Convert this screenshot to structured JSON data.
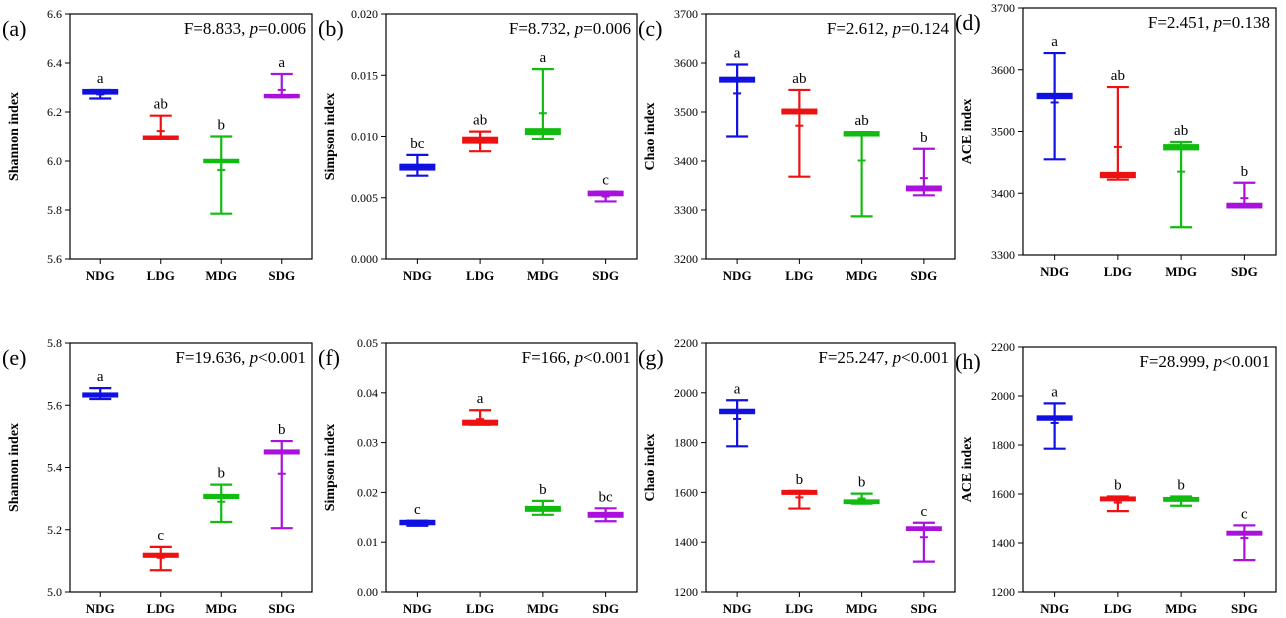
{
  "chart_data": [
    {
      "type": "box",
      "panel_label": "(a)",
      "annotation": {
        "prefix": "F=8.833, ",
        "pvar": "p",
        "relation": "=",
        "pval": "0.006"
      },
      "ylabel": "Shannon index",
      "ylim": [
        5.6,
        6.6
      ],
      "yticks": [
        "5.6",
        "5.8",
        "6.0",
        "6.2",
        "6.4",
        "6.6"
      ],
      "categories": [
        "NDG",
        "LDG",
        "MDG",
        "SDG"
      ],
      "colors": [
        "#1010e0",
        "#ee1111",
        "#11bb11",
        "#aa11dd"
      ],
      "series": [
        {
          "name": "NDG",
          "median": 6.28,
          "q1": 6.275,
          "q3": 6.29,
          "min": 6.255,
          "max": 6.29,
          "mean": 6.272,
          "letter": "a"
        },
        {
          "name": "LDG",
          "median": 6.095,
          "q1": 6.09,
          "q3": 6.1,
          "min": 6.09,
          "max": 6.185,
          "mean": 6.122,
          "letter": "ab"
        },
        {
          "name": "MDG",
          "median": 6.0,
          "q1": 5.995,
          "q3": 6.005,
          "min": 5.785,
          "max": 6.1,
          "mean": 5.963,
          "letter": "b"
        },
        {
          "name": "SDG",
          "median": 6.265,
          "q1": 6.26,
          "q3": 6.27,
          "min": 6.26,
          "max": 6.355,
          "mean": 6.29,
          "letter": "a"
        }
      ]
    },
    {
      "type": "box",
      "panel_label": "(b)",
      "annotation": {
        "prefix": "F=8.732, ",
        "pvar": "p",
        "relation": "=",
        "pval": "0.006"
      },
      "ylabel": "Simpson index",
      "ylim": [
        0.0,
        0.02
      ],
      "yticks": [
        "0.000",
        "0.005",
        "0.010",
        "0.015",
        "0.020"
      ],
      "categories": [
        "NDG",
        "LDG",
        "MDG",
        "SDG"
      ],
      "colors": [
        "#1010e0",
        "#ee1111",
        "#11bb11",
        "#aa11dd"
      ],
      "series": [
        {
          "name": "NDG",
          "median": 0.0075,
          "q1": 0.0073,
          "q3": 0.0077,
          "min": 0.0068,
          "max": 0.0085,
          "mean": 0.0076,
          "letter": "bc"
        },
        {
          "name": "LDG",
          "median": 0.0097,
          "q1": 0.0095,
          "q3": 0.0099,
          "min": 0.0088,
          "max": 0.0104,
          "mean": 0.0096,
          "letter": "ab"
        },
        {
          "name": "MDG",
          "median": 0.0104,
          "q1": 0.0102,
          "q3": 0.0106,
          "min": 0.0098,
          "max": 0.0155,
          "mean": 0.0119,
          "letter": "a"
        },
        {
          "name": "SDG",
          "median": 0.0054,
          "q1": 0.0052,
          "q3": 0.0055,
          "min": 0.0047,
          "max": 0.0055,
          "mean": 0.0051,
          "letter": "c"
        }
      ]
    },
    {
      "type": "box",
      "panel_label": "(c)",
      "annotation": {
        "prefix": "F=2.612, ",
        "pvar": "p",
        "relation": "=",
        "pval": "0.124"
      },
      "ylabel": "Chao index",
      "ylim": [
        3200,
        3700
      ],
      "yticks": [
        "3200",
        "3300",
        "3400",
        "3500",
        "3600",
        "3700"
      ],
      "categories": [
        "NDG",
        "LDG",
        "MDG",
        "SDG"
      ],
      "colors": [
        "#1010e0",
        "#ee1111",
        "#11bb11",
        "#aa11dd"
      ],
      "series": [
        {
          "name": "NDG",
          "median": 3567,
          "q1": 3562,
          "q3": 3570,
          "min": 3450,
          "max": 3597,
          "mean": 3538,
          "letter": "a"
        },
        {
          "name": "LDG",
          "median": 3502,
          "q1": 3497,
          "q3": 3505,
          "min": 3368,
          "max": 3545,
          "mean": 3472,
          "letter": "ab"
        },
        {
          "name": "MDG",
          "median": 3456,
          "q1": 3452,
          "q3": 3459,
          "min": 3287,
          "max": 3459,
          "mean": 3401,
          "letter": "ab"
        },
        {
          "name": "SDG",
          "median": 3345,
          "q1": 3340,
          "q3": 3348,
          "min": 3330,
          "max": 3425,
          "mean": 3365,
          "letter": "b"
        }
      ]
    },
    {
      "type": "box",
      "panel_label": "(d)",
      "annotation": {
        "prefix": "F=2.451, ",
        "pvar": "p",
        "relation": "=",
        "pval": "0.138"
      },
      "ylabel": "ACE index",
      "ylim": [
        3300,
        3700
      ],
      "yticks": [
        "3300",
        "3400",
        "3500",
        "3600",
        "3700"
      ],
      "categories": [
        "NDG",
        "LDG",
        "MDG",
        "SDG"
      ],
      "colors": [
        "#1010e0",
        "#ee1111",
        "#11bb11",
        "#aa11dd"
      ],
      "series": [
        {
          "name": "NDG",
          "median": 3558,
          "q1": 3554,
          "q3": 3561,
          "min": 3455,
          "max": 3627,
          "mean": 3547,
          "letter": "a"
        },
        {
          "name": "LDG",
          "median": 3430,
          "q1": 3426,
          "q3": 3433,
          "min": 3422,
          "max": 3572,
          "mean": 3475,
          "letter": "ab"
        },
        {
          "name": "MDG",
          "median": 3475,
          "q1": 3471,
          "q3": 3478,
          "min": 3345,
          "max": 3483,
          "mean": 3435,
          "letter": "ab"
        },
        {
          "name": "SDG",
          "median": 3380,
          "q1": 3377,
          "q3": 3383,
          "min": 3377,
          "max": 3417,
          "mean": 3392,
          "letter": "b"
        }
      ]
    },
    {
      "type": "box",
      "panel_label": "(e)",
      "annotation": {
        "prefix": "F=19.636, ",
        "pvar": "p",
        "relation": "<",
        "pval": "0.001"
      },
      "ylabel": "Shannon index",
      "ylim": [
        5.0,
        5.8
      ],
      "yticks": [
        "5.0",
        "5.2",
        "5.4",
        "5.6",
        "5.8"
      ],
      "categories": [
        "NDG",
        "LDG",
        "MDG",
        "SDG"
      ],
      "colors": [
        "#1010e0",
        "#ee1111",
        "#11bb11",
        "#aa11dd"
      ],
      "series": [
        {
          "name": "NDG",
          "median": 5.633,
          "q1": 5.628,
          "q3": 5.638,
          "min": 5.62,
          "max": 5.655,
          "mean": 5.635,
          "letter": "a"
        },
        {
          "name": "LDG",
          "median": 5.118,
          "q1": 5.113,
          "q3": 5.123,
          "min": 5.07,
          "max": 5.145,
          "mean": 5.11,
          "letter": "c"
        },
        {
          "name": "MDG",
          "median": 5.307,
          "q1": 5.302,
          "q3": 5.312,
          "min": 5.225,
          "max": 5.345,
          "mean": 5.29,
          "letter": "b"
        },
        {
          "name": "SDG",
          "median": 5.45,
          "q1": 5.445,
          "q3": 5.455,
          "min": 5.205,
          "max": 5.485,
          "mean": 5.38,
          "letter": "b"
        }
      ]
    },
    {
      "type": "box",
      "panel_label": "(f)",
      "annotation": {
        "prefix": "F=166, ",
        "pvar": "p",
        "relation": "<",
        "pval": "0.001"
      },
      "ylabel": "Simpson index",
      "ylim": [
        0.0,
        0.05
      ],
      "yticks": [
        "0.00",
        "0.01",
        "0.02",
        "0.03",
        "0.04",
        "0.05"
      ],
      "categories": [
        "NDG",
        "LDG",
        "MDG",
        "SDG"
      ],
      "colors": [
        "#1010e0",
        "#ee1111",
        "#11bb11",
        "#aa11dd"
      ],
      "series": [
        {
          "name": "NDG",
          "median": 0.014,
          "q1": 0.0136,
          "q3": 0.0143,
          "min": 0.0133,
          "max": 0.0143,
          "mean": 0.0138,
          "letter": "c"
        },
        {
          "name": "LDG",
          "median": 0.034,
          "q1": 0.0336,
          "q3": 0.0344,
          "min": 0.0336,
          "max": 0.0365,
          "mean": 0.0347,
          "letter": "a"
        },
        {
          "name": "MDG",
          "median": 0.0167,
          "q1": 0.0163,
          "q3": 0.0171,
          "min": 0.0155,
          "max": 0.0183,
          "mean": 0.0168,
          "letter": "b"
        },
        {
          "name": "SDG",
          "median": 0.0155,
          "q1": 0.0151,
          "q3": 0.0159,
          "min": 0.0142,
          "max": 0.0168,
          "mean": 0.0155,
          "letter": "bc"
        }
      ]
    },
    {
      "type": "box",
      "panel_label": "(g)",
      "annotation": {
        "prefix": "F=25.247, ",
        "pvar": "p",
        "relation": "<",
        "pval": "0.001"
      },
      "ylabel": "Chao index",
      "ylim": [
        1200,
        2200
      ],
      "yticks": [
        "1200",
        "1400",
        "1600",
        "1800",
        "2000",
        "2200"
      ],
      "categories": [
        "NDG",
        "LDG",
        "MDG",
        "SDG"
      ],
      "colors": [
        "#1010e0",
        "#ee1111",
        "#11bb11",
        "#aa11dd"
      ],
      "series": [
        {
          "name": "NDG",
          "median": 1925,
          "q1": 1918,
          "q3": 1932,
          "min": 1785,
          "max": 1970,
          "mean": 1895,
          "letter": "a"
        },
        {
          "name": "LDG",
          "median": 1600,
          "q1": 1594,
          "q3": 1606,
          "min": 1535,
          "max": 1606,
          "mean": 1580,
          "letter": "b"
        },
        {
          "name": "MDG",
          "median": 1563,
          "q1": 1557,
          "q3": 1568,
          "min": 1555,
          "max": 1595,
          "mean": 1575,
          "letter": "b"
        },
        {
          "name": "SDG",
          "median": 1455,
          "q1": 1449,
          "q3": 1460,
          "min": 1322,
          "max": 1478,
          "mean": 1420,
          "letter": "c"
        }
      ]
    },
    {
      "type": "box",
      "panel_label": "(h)",
      "annotation": {
        "prefix": "F=28.999, ",
        "pvar": "p",
        "relation": "<",
        "pval": "0.001"
      },
      "ylabel": "ACE index",
      "ylim": [
        1200,
        2200
      ],
      "yticks": [
        "1200",
        "1400",
        "1600",
        "1800",
        "2000",
        "2200"
      ],
      "categories": [
        "NDG",
        "LDG",
        "MDG",
        "SDG"
      ],
      "colors": [
        "#1010e0",
        "#ee1111",
        "#11bb11",
        "#aa11dd"
      ],
      "series": [
        {
          "name": "NDG",
          "median": 1910,
          "q1": 1903,
          "q3": 1917,
          "min": 1785,
          "max": 1970,
          "mean": 1890,
          "letter": "a"
        },
        {
          "name": "LDG",
          "median": 1580,
          "q1": 1574,
          "q3": 1586,
          "min": 1530,
          "max": 1590,
          "mean": 1565,
          "letter": "b"
        },
        {
          "name": "MDG",
          "median": 1578,
          "q1": 1572,
          "q3": 1584,
          "min": 1552,
          "max": 1590,
          "mean": 1575,
          "letter": "b"
        },
        {
          "name": "SDG",
          "median": 1440,
          "q1": 1434,
          "q3": 1446,
          "min": 1330,
          "max": 1472,
          "mean": 1420,
          "letter": "c"
        }
      ]
    }
  ]
}
